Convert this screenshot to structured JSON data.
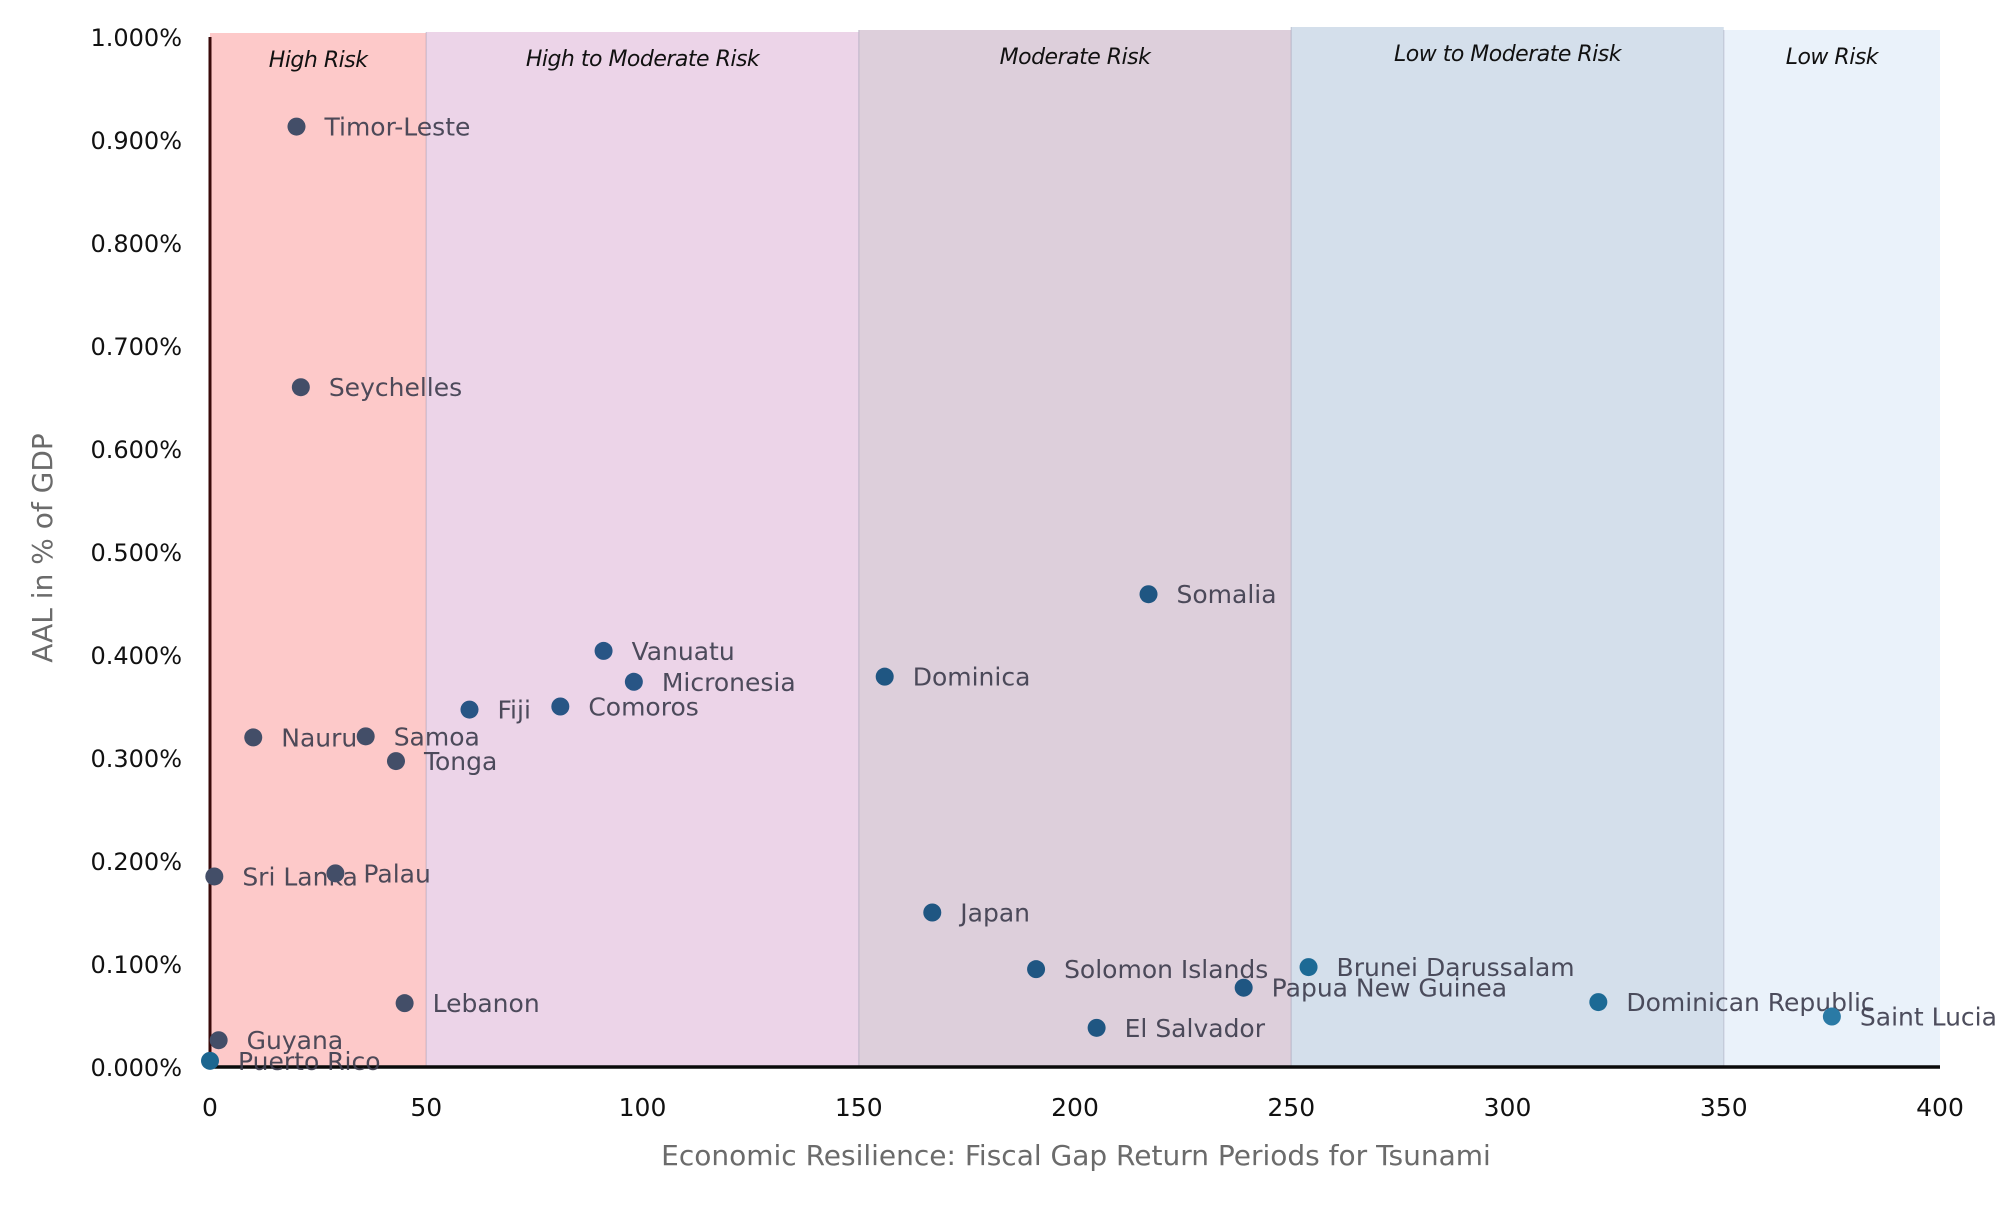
{
  "chart_data": {
    "type": "scatter",
    "title": "",
    "xlabel": "Economic Resilience: Fiscal Gap Return Periods for Tsunami",
    "ylabel": "AAL in % of GDP",
    "xlim": [
      0,
      400
    ],
    "ylim": [
      0,
      1.0
    ],
    "x_ticks": [
      0,
      50,
      100,
      150,
      200,
      250,
      300,
      350,
      400
    ],
    "x_tick_labels": [
      "0",
      "50",
      "100",
      "150",
      "200",
      "250",
      "300",
      "350",
      "400"
    ],
    "y_ticks": [
      0,
      0.1,
      0.2,
      0.3,
      0.4,
      0.5,
      0.6,
      0.7,
      0.8,
      0.9,
      1.0
    ],
    "y_tick_labels": [
      "0.000%",
      "0.100%",
      "0.200%",
      "0.300%",
      "0.400%",
      "0.500%",
      "0.600%",
      "0.700%",
      "0.800%",
      "0.900%",
      "1.000%"
    ],
    "grid": false,
    "legend": "none",
    "bands": [
      {
        "label": "High Risk",
        "x0": 0,
        "x1": 50,
        "color": "#fdc9c9"
      },
      {
        "label": "High to Moderate Risk",
        "x0": 50,
        "x1": 150,
        "color": "#ecd4e8"
      },
      {
        "label": "Moderate Risk",
        "x0": 150,
        "x1": 250,
        "color": "#ddcfdb"
      },
      {
        "label": "Low to Moderate Risk",
        "x0": 250,
        "x1": 350,
        "color": "#d4dfeb"
      },
      {
        "label": "Low Risk",
        "x0": 350,
        "x1": 400,
        "color": "#eaf2fa"
      }
    ],
    "points": [
      {
        "label": "Timor-Leste",
        "x": 20,
        "y": 0.913,
        "color": "#434e68"
      },
      {
        "label": "Seychelles",
        "x": 21,
        "y": 0.66,
        "color": "#434e68"
      },
      {
        "label": "Nauru",
        "x": 10,
        "y": 0.32,
        "color": "#434e68"
      },
      {
        "label": "Samoa",
        "x": 36,
        "y": 0.321,
        "color": "#434e68"
      },
      {
        "label": "Tonga",
        "x": 43,
        "y": 0.297,
        "color": "#434e68"
      },
      {
        "label": "Sri Lanka",
        "x": 1,
        "y": 0.185,
        "color": "#434e68"
      },
      {
        "label": "Palau",
        "x": 29,
        "y": 0.188,
        "color": "#434e68"
      },
      {
        "label": "Lebanon",
        "x": 45,
        "y": 0.062,
        "color": "#434e68"
      },
      {
        "label": "Guyana",
        "x": 2,
        "y": 0.026,
        "color": "#434e68"
      },
      {
        "label": "Puerto Rico",
        "x": 0,
        "y": 0.006,
        "color": "#1c6690"
      },
      {
        "label": "Fiji",
        "x": 60,
        "y": 0.347,
        "color": "#285585"
      },
      {
        "label": "Comoros",
        "x": 81,
        "y": 0.35,
        "color": "#285585"
      },
      {
        "label": "Vanuatu",
        "x": 91,
        "y": 0.404,
        "color": "#285585"
      },
      {
        "label": "Micronesia",
        "x": 98,
        "y": 0.374,
        "color": "#285585"
      },
      {
        "label": "Dominica",
        "x": 156,
        "y": 0.379,
        "color": "#1f5682"
      },
      {
        "label": "Somalia",
        "x": 217,
        "y": 0.459,
        "color": "#1f5682"
      },
      {
        "label": "Japan",
        "x": 167,
        "y": 0.15,
        "color": "#1f5682"
      },
      {
        "label": "Solomon Islands",
        "x": 191,
        "y": 0.095,
        "color": "#1f5682"
      },
      {
        "label": "El Salvador",
        "x": 205,
        "y": 0.038,
        "color": "#1f5682"
      },
      {
        "label": "Papua New Guinea",
        "x": 239,
        "y": 0.077,
        "color": "#1f5682"
      },
      {
        "label": "Brunei Darussalam",
        "x": 254,
        "y": 0.097,
        "color": "#1c6a95"
      },
      {
        "label": "Dominican Republic",
        "x": 321,
        "y": 0.063,
        "color": "#1c6a95"
      },
      {
        "label": "Saint Lucia",
        "x": 375,
        "y": 0.049,
        "color": "#2a7aa5"
      }
    ]
  }
}
